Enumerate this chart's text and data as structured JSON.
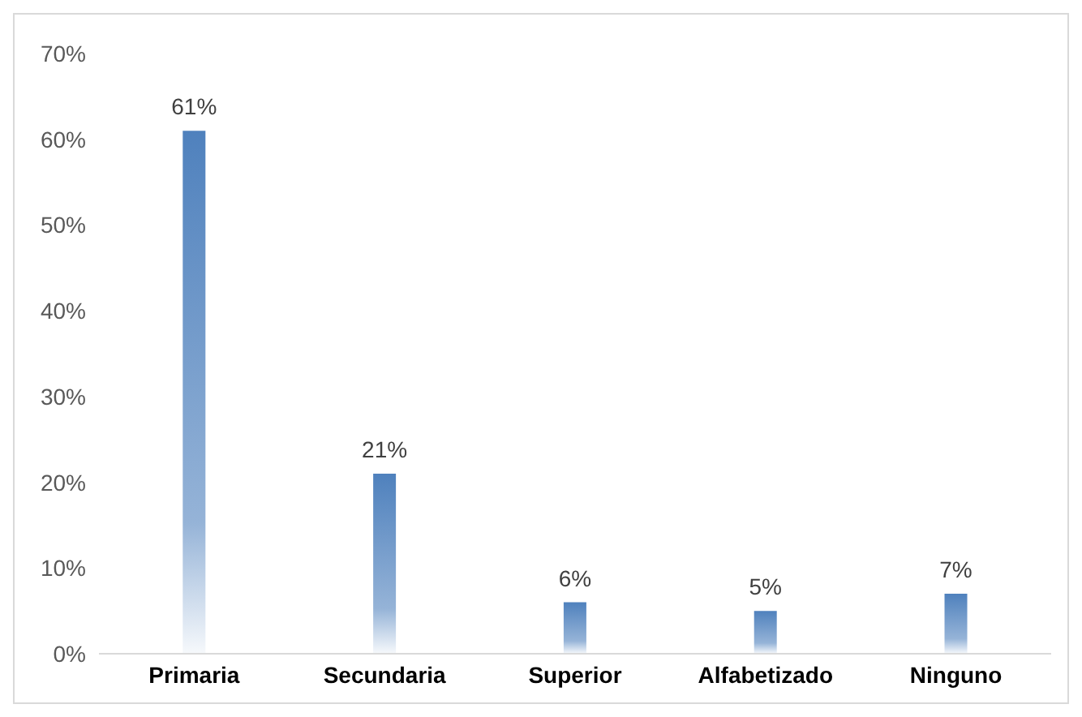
{
  "chart_data": {
    "type": "bar",
    "categories": [
      "Primaria",
      "Secundaria",
      "Superior",
      "Alfabetizado",
      "Ninguno"
    ],
    "values": [
      61,
      21,
      6,
      5,
      7
    ],
    "value_labels": [
      "61%",
      "21%",
      "6%",
      "5%",
      "7%"
    ],
    "color": "#4f81bd",
    "ylim": [
      0,
      70
    ],
    "yticks": [
      {
        "value": 0,
        "label": "0%"
      },
      {
        "value": 10,
        "label": "10%"
      },
      {
        "value": 20,
        "label": "20%"
      },
      {
        "value": 30,
        "label": "30%"
      },
      {
        "value": 40,
        "label": "40%"
      },
      {
        "value": 50,
        "label": "50%"
      },
      {
        "value": 60,
        "label": "60%"
      },
      {
        "value": 70,
        "label": "70%"
      }
    ],
    "grid": false,
    "legend": false
  }
}
